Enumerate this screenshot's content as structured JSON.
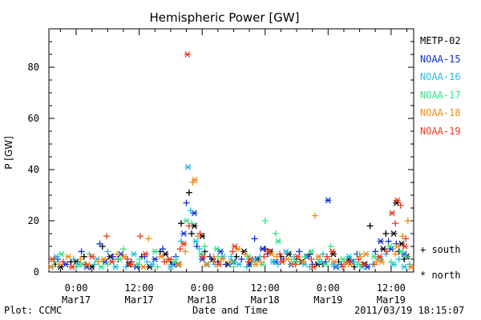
{
  "chart_data": {
    "type": "scatter",
    "title": "Hemispheric Power [GW]",
    "ylabel": "P [GW]",
    "xlabel": "Date and Time",
    "ylim": [
      0,
      95
    ],
    "yticks": [
      0,
      20,
      40,
      60,
      80
    ],
    "x_unit": "hours since 2011-03-17 00:00 UT",
    "xlim": [
      -5.2,
      64.3
    ],
    "xticks": [
      {
        "x": 0,
        "top": "0:00",
        "bottom": "Mar17"
      },
      {
        "x": 12,
        "top": "12:00",
        "bottom": "Mar17"
      },
      {
        "x": 24,
        "top": "0:00",
        "bottom": "Mar18"
      },
      {
        "x": 36,
        "top": "12:00",
        "bottom": "Mar18"
      },
      {
        "x": 48,
        "top": "0:00",
        "bottom": "Mar19"
      },
      {
        "x": 60,
        "top": "12:00",
        "bottom": "Mar19"
      }
    ],
    "grid": false,
    "legend_position": "right",
    "symbols": {
      "south": "+",
      "north": "*"
    },
    "series": [
      {
        "name": "METP-02",
        "color": "#000000",
        "south": [
          [
            -4.0,
            3
          ],
          [
            -1.0,
            4
          ],
          [
            1.5,
            6
          ],
          [
            5.0,
            10
          ],
          [
            8.0,
            5
          ],
          [
            12.5,
            6
          ],
          [
            16.0,
            8
          ],
          [
            18.0,
            4
          ],
          [
            20.0,
            19
          ],
          [
            21.5,
            31
          ],
          [
            22.0,
            15
          ],
          [
            24.5,
            8
          ],
          [
            27.0,
            4
          ],
          [
            30.5,
            6
          ],
          [
            33.0,
            3
          ],
          [
            36.0,
            9
          ],
          [
            39.0,
            6
          ],
          [
            42.0,
            5
          ],
          [
            44.5,
            7
          ],
          [
            47.0,
            3
          ],
          [
            50.0,
            4
          ],
          [
            53.0,
            2
          ],
          [
            56.0,
            18
          ],
          [
            59.0,
            15
          ],
          [
            61.5,
            8
          ],
          [
            62.5,
            5
          ]
        ],
        "north": [
          [
            -3.0,
            2
          ],
          [
            0.0,
            4
          ],
          [
            3.0,
            2
          ],
          [
            6.5,
            6
          ],
          [
            10.0,
            3
          ],
          [
            14.0,
            2
          ],
          [
            17.0,
            7
          ],
          [
            19.5,
            3
          ],
          [
            22.5,
            18
          ],
          [
            24.0,
            14
          ],
          [
            26.0,
            5
          ],
          [
            29.0,
            3
          ],
          [
            32.0,
            8
          ],
          [
            34.5,
            5
          ],
          [
            37.0,
            8
          ],
          [
            40.5,
            7
          ],
          [
            43.0,
            4
          ],
          [
            46.0,
            3
          ],
          [
            49.0,
            7
          ],
          [
            52.0,
            5
          ],
          [
            55.0,
            3
          ],
          [
            58.5,
            9
          ],
          [
            60.5,
            15
          ],
          [
            61.0,
            27
          ],
          [
            62.0,
            11
          ],
          [
            63.0,
            6
          ]
        ]
      },
      {
        "name": "NOAA-15",
        "color": "#0a2fd8",
        "south": [
          [
            -3.5,
            5
          ],
          [
            1.0,
            8
          ],
          [
            4.5,
            11
          ],
          [
            7.0,
            6
          ],
          [
            10.5,
            4
          ],
          [
            13.0,
            6
          ],
          [
            16.5,
            9
          ],
          [
            19.0,
            6
          ],
          [
            21.0,
            27
          ],
          [
            23.0,
            10
          ],
          [
            25.5,
            6
          ],
          [
            28.5,
            3
          ],
          [
            31.5,
            5
          ],
          [
            34.0,
            13
          ],
          [
            36.5,
            7
          ],
          [
            39.5,
            5
          ],
          [
            42.5,
            8
          ],
          [
            45.0,
            3
          ],
          [
            47.5,
            4
          ],
          [
            50.5,
            3
          ],
          [
            53.5,
            7
          ],
          [
            57.0,
            8
          ],
          [
            59.5,
            12
          ],
          [
            61.0,
            11
          ]
        ],
        "north": [
          [
            -2.0,
            3
          ],
          [
            2.0,
            2
          ],
          [
            5.5,
            4
          ],
          [
            8.5,
            7
          ],
          [
            11.5,
            2
          ],
          [
            15.0,
            5
          ],
          [
            18.5,
            3
          ],
          [
            20.5,
            15
          ],
          [
            22.5,
            23
          ],
          [
            24.0,
            5
          ],
          [
            27.5,
            8
          ],
          [
            30.0,
            4
          ],
          [
            33.0,
            3
          ],
          [
            35.5,
            9
          ],
          [
            38.0,
            4
          ],
          [
            41.0,
            3
          ],
          [
            44.0,
            6
          ],
          [
            48.0,
            28
          ],
          [
            49.5,
            2
          ],
          [
            52.5,
            4
          ],
          [
            55.5,
            2
          ],
          [
            58.0,
            12
          ],
          [
            60.0,
            9
          ],
          [
            62.5,
            7
          ]
        ]
      },
      {
        "name": "NOAA-16",
        "color": "#22bde6",
        "south": [
          [
            -4.5,
            2
          ],
          [
            -0.5,
            5
          ],
          [
            3.5,
            3
          ],
          [
            6.0,
            8
          ],
          [
            9.5,
            2
          ],
          [
            13.5,
            4
          ],
          [
            17.5,
            5
          ],
          [
            20.0,
            12
          ],
          [
            21.8,
            24
          ],
          [
            23.5,
            9
          ],
          [
            26.5,
            3
          ],
          [
            29.5,
            6
          ],
          [
            32.5,
            2
          ],
          [
            35.0,
            6
          ],
          [
            38.5,
            3
          ],
          [
            41.5,
            6
          ],
          [
            44.5,
            2
          ],
          [
            47.0,
            7
          ],
          [
            50.0,
            2
          ],
          [
            53.0,
            4
          ],
          [
            56.5,
            3
          ],
          [
            59.0,
            7
          ],
          [
            61.5,
            5
          ],
          [
            63.5,
            3
          ]
        ],
        "north": [
          [
            -3.8,
            6
          ],
          [
            0.5,
            3
          ],
          [
            4.0,
            5
          ],
          [
            7.5,
            2
          ],
          [
            11.0,
            7
          ],
          [
            14.5,
            3
          ],
          [
            18.0,
            2
          ],
          [
            21.3,
            41
          ],
          [
            22.8,
            12
          ],
          [
            25.0,
            3
          ],
          [
            28.0,
            6
          ],
          [
            31.0,
            3
          ],
          [
            34.0,
            5
          ],
          [
            37.5,
            4
          ],
          [
            40.0,
            8
          ],
          [
            43.5,
            3
          ],
          [
            46.5,
            4
          ],
          [
            49.0,
            3
          ],
          [
            52.0,
            6
          ],
          [
            54.5,
            2
          ],
          [
            58.0,
            5
          ],
          [
            60.5,
            3
          ],
          [
            62.5,
            2
          ]
        ]
      },
      {
        "name": "NOAA-17",
        "color": "#33e38a",
        "south": [
          [
            -4.2,
            4
          ],
          [
            0.0,
            2
          ],
          [
            2.5,
            7
          ],
          [
            6.0,
            3
          ],
          [
            9.0,
            9
          ],
          [
            12.0,
            5
          ],
          [
            15.5,
            2
          ],
          [
            19.0,
            5
          ],
          [
            22.0,
            19
          ],
          [
            24.5,
            10
          ],
          [
            27.0,
            6
          ],
          [
            30.0,
            2
          ],
          [
            33.5,
            4
          ],
          [
            36.0,
            20
          ],
          [
            38.0,
            15
          ],
          [
            41.0,
            5
          ],
          [
            43.5,
            6
          ],
          [
            46.0,
            5
          ],
          [
            48.5,
            10
          ],
          [
            51.0,
            4
          ],
          [
            54.0,
            7
          ],
          [
            57.5,
            5
          ],
          [
            60.0,
            4
          ],
          [
            62.8,
            6
          ]
        ],
        "north": [
          [
            -2.8,
            7
          ],
          [
            1.2,
            3
          ],
          [
            4.8,
            2
          ],
          [
            8.2,
            5
          ],
          [
            11.8,
            3
          ],
          [
            15.0,
            8
          ],
          [
            18.8,
            4
          ],
          [
            21.0,
            20
          ],
          [
            23.8,
            7
          ],
          [
            26.8,
            9
          ],
          [
            29.8,
            4
          ],
          [
            32.8,
            6
          ],
          [
            35.5,
            3
          ],
          [
            38.5,
            12
          ],
          [
            41.8,
            4
          ],
          [
            44.8,
            8
          ],
          [
            47.5,
            3
          ],
          [
            50.8,
            5
          ],
          [
            53.8,
            3
          ],
          [
            56.8,
            6
          ],
          [
            59.8,
            10
          ],
          [
            62.0,
            8
          ]
        ]
      },
      {
        "name": "NOAA-18",
        "color": "#f08c17",
        "south": [
          [
            -3.2,
            3
          ],
          [
            0.8,
            5
          ],
          [
            4.2,
            4
          ],
          [
            7.8,
            7
          ],
          [
            10.8,
            3
          ],
          [
            13.8,
            13
          ],
          [
            17.2,
            4
          ],
          [
            20.8,
            8
          ],
          [
            22.2,
            35
          ],
          [
            23.2,
            14
          ],
          [
            26.2,
            6
          ],
          [
            29.2,
            4
          ],
          [
            32.2,
            7
          ],
          [
            35.2,
            4
          ],
          [
            38.2,
            6
          ],
          [
            41.2,
            3
          ],
          [
            45.5,
            22
          ],
          [
            48.2,
            5
          ],
          [
            51.2,
            3
          ],
          [
            54.2,
            6
          ],
          [
            57.2,
            4
          ],
          [
            60.8,
            7
          ],
          [
            62.2,
            14
          ],
          [
            63.2,
            20
          ]
        ],
        "north": [
          [
            -4.8,
            2
          ],
          [
            -1.5,
            6
          ],
          [
            2.2,
            3
          ],
          [
            5.2,
            5
          ],
          [
            9.2,
            6
          ],
          [
            12.8,
            2
          ],
          [
            16.2,
            6
          ],
          [
            19.6,
            3
          ],
          [
            22.6,
            36
          ],
          [
            24.8,
            3
          ],
          [
            27.8,
            5
          ],
          [
            30.8,
            9
          ],
          [
            34.2,
            3
          ],
          [
            37.2,
            7
          ],
          [
            40.2,
            5
          ],
          [
            43.2,
            4
          ],
          [
            46.2,
            6
          ],
          [
            49.2,
            4
          ],
          [
            52.2,
            3
          ],
          [
            55.2,
            7
          ],
          [
            58.2,
            4
          ],
          [
            61.2,
            10
          ],
          [
            63.8,
            2
          ]
        ]
      },
      {
        "name": "NOAA-19",
        "color": "#e8391d",
        "south": [
          [
            -2.5,
            4
          ],
          [
            1.8,
            3
          ],
          [
            5.8,
            14
          ],
          [
            9.8,
            5
          ],
          [
            12.2,
            14
          ],
          [
            16.8,
            4
          ],
          [
            19.8,
            9
          ],
          [
            21.5,
            18
          ],
          [
            23.6,
            15
          ],
          [
            26.2,
            4
          ],
          [
            29.8,
            8
          ],
          [
            32.8,
            4
          ],
          [
            35.8,
            6
          ],
          [
            38.8,
            7
          ],
          [
            41.8,
            3
          ],
          [
            44.8,
            5
          ],
          [
            47.8,
            6
          ],
          [
            50.8,
            2
          ],
          [
            53.8,
            5
          ],
          [
            56.8,
            3
          ],
          [
            59.2,
            8
          ],
          [
            60.8,
            19
          ],
          [
            61.8,
            26
          ],
          [
            62.8,
            13
          ]
        ],
        "north": [
          [
            -4.5,
            5
          ],
          [
            -0.8,
            2
          ],
          [
            3.0,
            6
          ],
          [
            6.8,
            4
          ],
          [
            10.2,
            3
          ],
          [
            13.2,
            7
          ],
          [
            17.8,
            5
          ],
          [
            20.5,
            11
          ],
          [
            21.2,
            85
          ],
          [
            24.2,
            6
          ],
          [
            27.2,
            3
          ],
          [
            30.2,
            10
          ],
          [
            33.2,
            5
          ],
          [
            36.6,
            8
          ],
          [
            39.2,
            4
          ],
          [
            42.2,
            6
          ],
          [
            45.2,
            2
          ],
          [
            48.8,
            8
          ],
          [
            51.8,
            4
          ],
          [
            54.8,
            3
          ],
          [
            57.8,
            6
          ],
          [
            60.2,
            23
          ],
          [
            61.2,
            28
          ],
          [
            62.6,
            10
          ]
        ]
      }
    ]
  },
  "symbol_key": {
    "south_label": "+ south",
    "north_label": "* north"
  },
  "footer": {
    "left": "Plot: CCMC",
    "center": "Date and Time",
    "right": "2011/03/19 18:15:07"
  }
}
